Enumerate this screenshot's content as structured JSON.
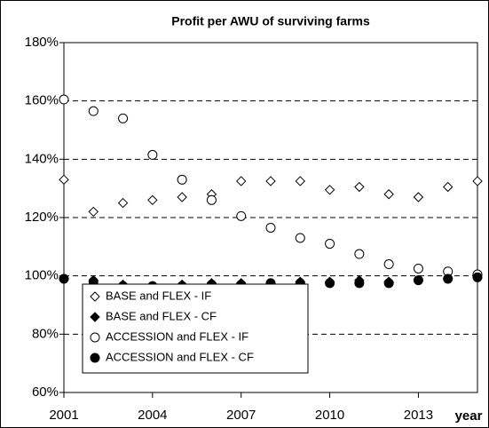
{
  "chart_data": {
    "type": "scatter",
    "title": "Profit per AWU of surviving farms",
    "x_label": "year",
    "x": [
      2001,
      2002,
      2003,
      2004,
      2005,
      2006,
      2007,
      2008,
      2009,
      2010,
      2011,
      2012,
      2013,
      2014,
      2015
    ],
    "xlim": [
      2001,
      2015
    ],
    "xticks": [
      2001,
      2004,
      2007,
      2010,
      2013
    ],
    "ylim": [
      60,
      180
    ],
    "yticks": [
      {
        "value": 60,
        "label": "60%"
      },
      {
        "value": 80,
        "label": "80%"
      },
      {
        "value": 100,
        "label": "100%"
      },
      {
        "value": 120,
        "label": "120%"
      },
      {
        "value": 140,
        "label": "140%"
      },
      {
        "value": 160,
        "label": "160%"
      },
      {
        "value": 180,
        "label": "180%"
      }
    ],
    "grid": true,
    "legend": "lower left",
    "series": [
      {
        "name": "BASE and  FLEX - IF",
        "marker": "diamond",
        "color": "#000000",
        "fill": "#ffffff",
        "values": [
          133,
          122,
          125,
          126,
          127,
          128,
          132.5,
          132.5,
          132.5,
          129.5,
          130.5,
          128,
          127,
          130.5,
          132.5
        ]
      },
      {
        "name": "BASE and  FLEX - CF",
        "marker": "diamond",
        "color": "#000000",
        "fill": "#000000",
        "values": [
          99,
          98.5,
          97,
          96.5,
          97,
          97.5,
          97.5,
          97.5,
          98,
          98,
          98.5,
          98,
          98.5,
          99,
          100.5
        ]
      },
      {
        "name": "ACCESSION and FLEX - IF",
        "marker": "circle",
        "color": "#000000",
        "fill": "#ffffff",
        "values": [
          160.5,
          156.5,
          154,
          141.5,
          133,
          126,
          120.5,
          116.5,
          113,
          111,
          107.5,
          104,
          102.5,
          101.5,
          100.5
        ]
      },
      {
        "name": "ACCESSION and FLEX - CF",
        "marker": "circle",
        "color": "#000000",
        "fill": "#000000",
        "values": [
          99,
          98,
          96.5,
          96.5,
          96.5,
          97,
          97,
          97.5,
          97.5,
          97.5,
          97.5,
          97.5,
          98.5,
          99,
          99.5
        ]
      }
    ]
  }
}
